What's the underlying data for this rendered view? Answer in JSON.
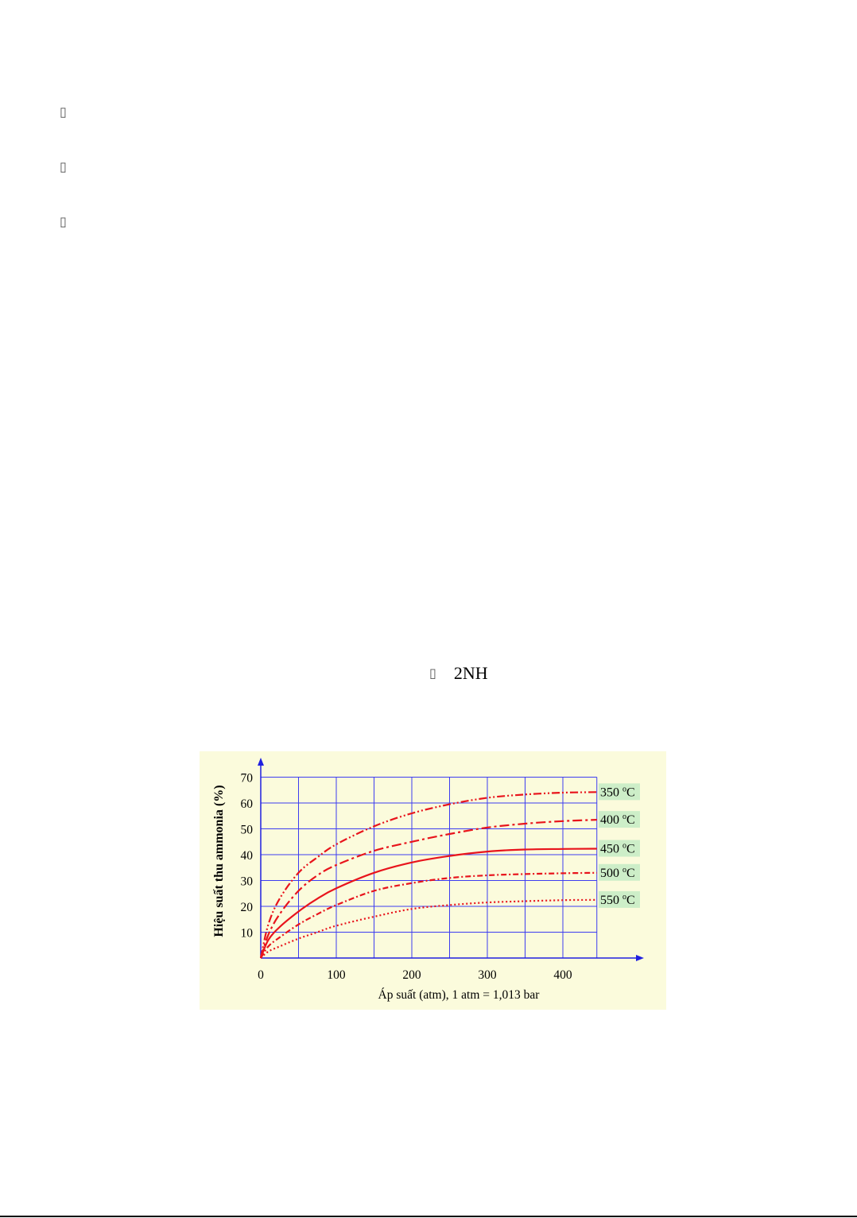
{
  "bullets": [
    {
      "icon": "missing-glyph-box"
    },
    {
      "icon": "missing-glyph-box"
    },
    {
      "icon": "missing-glyph-box"
    }
  ],
  "formula": {
    "icon": "missing-glyph-box",
    "text": "2NH"
  },
  "chart_data": {
    "type": "line",
    "xlabel": "Áp suất (atm), 1 atm = 1,013 bar",
    "ylabel": "Hiệu suất thu ammonia (%)",
    "xlim": [
      0,
      445
    ],
    "ylim": [
      0,
      70
    ],
    "xticks": [
      0,
      100,
      200,
      300,
      400
    ],
    "yticks": [
      10,
      20,
      30,
      40,
      50,
      60,
      70
    ],
    "grid": true,
    "legend": "right, labels at line ends",
    "colors": {
      "background": "#fbfbdc",
      "grid": "#3c3cf0",
      "axis": "#2020e0",
      "line": "#e8141c",
      "label_bg": "#cdeec8"
    },
    "series": [
      {
        "name": "350 °C",
        "label_main": "350 ",
        "label_sup": "o",
        "label_end": "C",
        "style": "dash-dot-dot",
        "x": [
          0,
          10,
          25,
          50,
          75,
          100,
          150,
          200,
          250,
          300,
          350,
          400,
          445
        ],
        "y": [
          0,
          13,
          23,
          33,
          39,
          44,
          51,
          56,
          59.5,
          62,
          63.3,
          64,
          64.2
        ]
      },
      {
        "name": "400 °C",
        "label_main": "400 ",
        "label_sup": "o",
        "label_end": "C",
        "style": "dash-dot",
        "x": [
          0,
          10,
          25,
          50,
          75,
          100,
          150,
          200,
          250,
          300,
          350,
          400,
          445
        ],
        "y": [
          0,
          9,
          17,
          26,
          32,
          36,
          41.5,
          45,
          48,
          50.5,
          52,
          53,
          53.5
        ]
      },
      {
        "name": "450 °C",
        "label_main": "450 ",
        "label_sup": "o",
        "label_end": "C",
        "style": "solid",
        "x": [
          0,
          10,
          25,
          50,
          75,
          100,
          150,
          200,
          250,
          300,
          350,
          400,
          445
        ],
        "y": [
          0,
          7,
          12,
          18,
          23,
          27,
          33,
          37,
          39.5,
          41.2,
          42,
          42.2,
          42.3
        ]
      },
      {
        "name": "500 °C",
        "label_main": "500 ",
        "label_sup": "o",
        "label_end": "C",
        "style": "dash-dot-short",
        "x": [
          0,
          10,
          25,
          50,
          75,
          100,
          150,
          200,
          250,
          300,
          350,
          400,
          445
        ],
        "y": [
          0,
          4.5,
          8,
          13,
          17,
          20.5,
          26,
          29,
          31,
          32,
          32.5,
          32.8,
          33
        ]
      },
      {
        "name": "550 °C",
        "label_main": "550 ",
        "label_sup": "o",
        "label_end": "C",
        "style": "dotted",
        "x": [
          0,
          10,
          25,
          50,
          75,
          100,
          150,
          200,
          250,
          300,
          350,
          400,
          445
        ],
        "y": [
          0,
          2.5,
          4.5,
          7.5,
          10,
          12.5,
          16,
          19,
          20.5,
          21.5,
          22,
          22.4,
          22.5
        ]
      }
    ]
  }
}
